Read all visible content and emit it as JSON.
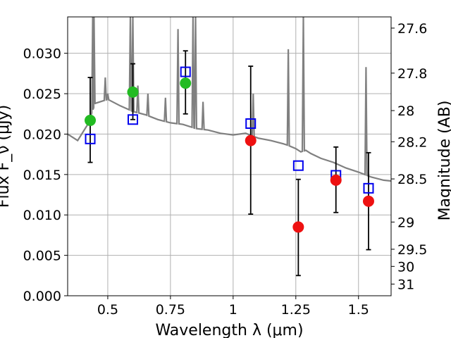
{
  "chart_data": {
    "type": "scatter",
    "title": "",
    "xlabel": "Wavelength  λ (μm)",
    "ylabel": "Flux  F_ν (μJy)",
    "ylabel_right": "Magnitude (AB)",
    "xlim": [
      0.34,
      1.63
    ],
    "ylim": [
      0,
      0.0345
    ],
    "x_ticks": [
      0.5,
      0.75,
      1.0,
      1.25,
      1.5
    ],
    "x_tick_labels": [
      "0.5",
      "0.75",
      "1",
      "1.25",
      "1.5"
    ],
    "y_ticks": [
      0,
      0.005,
      0.01,
      0.015,
      0.02,
      0.025,
      0.03
    ],
    "y_tick_labels": [
      "0.000",
      "0.005",
      "0.010",
      "0.015",
      "0.020",
      "0.025",
      "0.030"
    ],
    "right_ticks": [
      {
        "mag": 27.6,
        "label": "27.6"
      },
      {
        "mag": 27.8,
        "label": "27.8"
      },
      {
        "mag": 28.0,
        "label": "28"
      },
      {
        "mag": 28.2,
        "label": "28.2"
      },
      {
        "mag": 28.5,
        "label": "28.5"
      },
      {
        "mag": 29.0,
        "label": "29"
      },
      {
        "mag": 29.5,
        "label": "29.5"
      },
      {
        "mag": 30.0,
        "label": "30"
      },
      {
        "mag": 31.0,
        "label": "31"
      }
    ],
    "grid": true,
    "colors": {
      "spectrum": "#808080",
      "model_box": "#0000ee",
      "detected": "#22bb22",
      "upper": "#ee1111",
      "errorbar": "#000000",
      "grid": "#b0b0b0"
    },
    "model_points": {
      "x": [
        0.43,
        0.6,
        0.81,
        1.07,
        1.26,
        1.41,
        1.54
      ],
      "y": [
        0.0194,
        0.0218,
        0.0277,
        0.0213,
        0.0161,
        0.0149,
        0.0133
      ]
    },
    "detected_points": {
      "x": [
        0.43,
        0.6,
        0.81
      ],
      "y": [
        0.0217,
        0.0252,
        0.0263
      ]
    },
    "red_points": {
      "x": [
        1.07,
        1.26,
        1.41,
        1.54
      ],
      "y": [
        0.0192,
        0.0085,
        0.0143,
        0.0117
      ]
    },
    "error_bars": [
      {
        "x": 0.43,
        "low": 0.0165,
        "high": 0.027
      },
      {
        "x": 0.6,
        "low": 0.0218,
        "high": 0.0287
      },
      {
        "x": 0.81,
        "low": 0.0225,
        "high": 0.0303
      },
      {
        "x": 1.07,
        "low": 0.0101,
        "high": 0.0284
      },
      {
        "x": 1.26,
        "low": 0.0025,
        "high": 0.0144
      },
      {
        "x": 1.41,
        "low": 0.0103,
        "high": 0.0184
      },
      {
        "x": 1.54,
        "low": 0.0057,
        "high": 0.0177
      }
    ],
    "spectrum": {
      "continuum": [
        [
          0.34,
          0.02
        ],
        [
          0.38,
          0.0192
        ],
        [
          0.42,
          0.0212
        ],
        [
          0.45,
          0.0238
        ],
        [
          0.5,
          0.0243
        ],
        [
          0.55,
          0.0235
        ],
        [
          0.6,
          0.0228
        ],
        [
          0.65,
          0.0224
        ],
        [
          0.7,
          0.0218
        ],
        [
          0.75,
          0.0214
        ],
        [
          0.8,
          0.0212
        ],
        [
          0.85,
          0.0207
        ],
        [
          0.9,
          0.0205
        ],
        [
          0.95,
          0.0201
        ],
        [
          1.0,
          0.0199
        ],
        [
          1.05,
          0.0201
        ],
        [
          1.1,
          0.0195
        ],
        [
          1.15,
          0.0192
        ],
        [
          1.2,
          0.0188
        ],
        [
          1.22,
          0.0186
        ],
        [
          1.25,
          0.0182
        ],
        [
          1.27,
          0.0178
        ],
        [
          1.29,
          0.018
        ],
        [
          1.31,
          0.0176
        ],
        [
          1.35,
          0.017
        ],
        [
          1.4,
          0.0165
        ],
        [
          1.45,
          0.0158
        ],
        [
          1.5,
          0.0153
        ],
        [
          1.55,
          0.0147
        ],
        [
          1.6,
          0.0143
        ],
        [
          1.63,
          0.0142
        ]
      ],
      "lines": [
        {
          "x": 0.44,
          "peak": 0.0345
        },
        {
          "x": 0.445,
          "peak": 0.0345
        },
        {
          "x": 0.49,
          "peak": 0.027
        },
        {
          "x": 0.5,
          "peak": 0.025
        },
        {
          "x": 0.59,
          "peak": 0.0345
        },
        {
          "x": 0.6,
          "peak": 0.0345
        },
        {
          "x": 0.62,
          "peak": 0.026
        },
        {
          "x": 0.66,
          "peak": 0.025
        },
        {
          "x": 0.73,
          "peak": 0.0245
        },
        {
          "x": 0.78,
          "peak": 0.033
        },
        {
          "x": 0.84,
          "peak": 0.0345
        },
        {
          "x": 0.85,
          "peak": 0.0345
        },
        {
          "x": 0.88,
          "peak": 0.024
        },
        {
          "x": 1.08,
          "peak": 0.025
        },
        {
          "x": 1.22,
          "peak": 0.0305
        },
        {
          "x": 1.28,
          "peak": 0.0345
        },
        {
          "x": 1.53,
          "peak": 0.0283
        }
      ]
    }
  }
}
